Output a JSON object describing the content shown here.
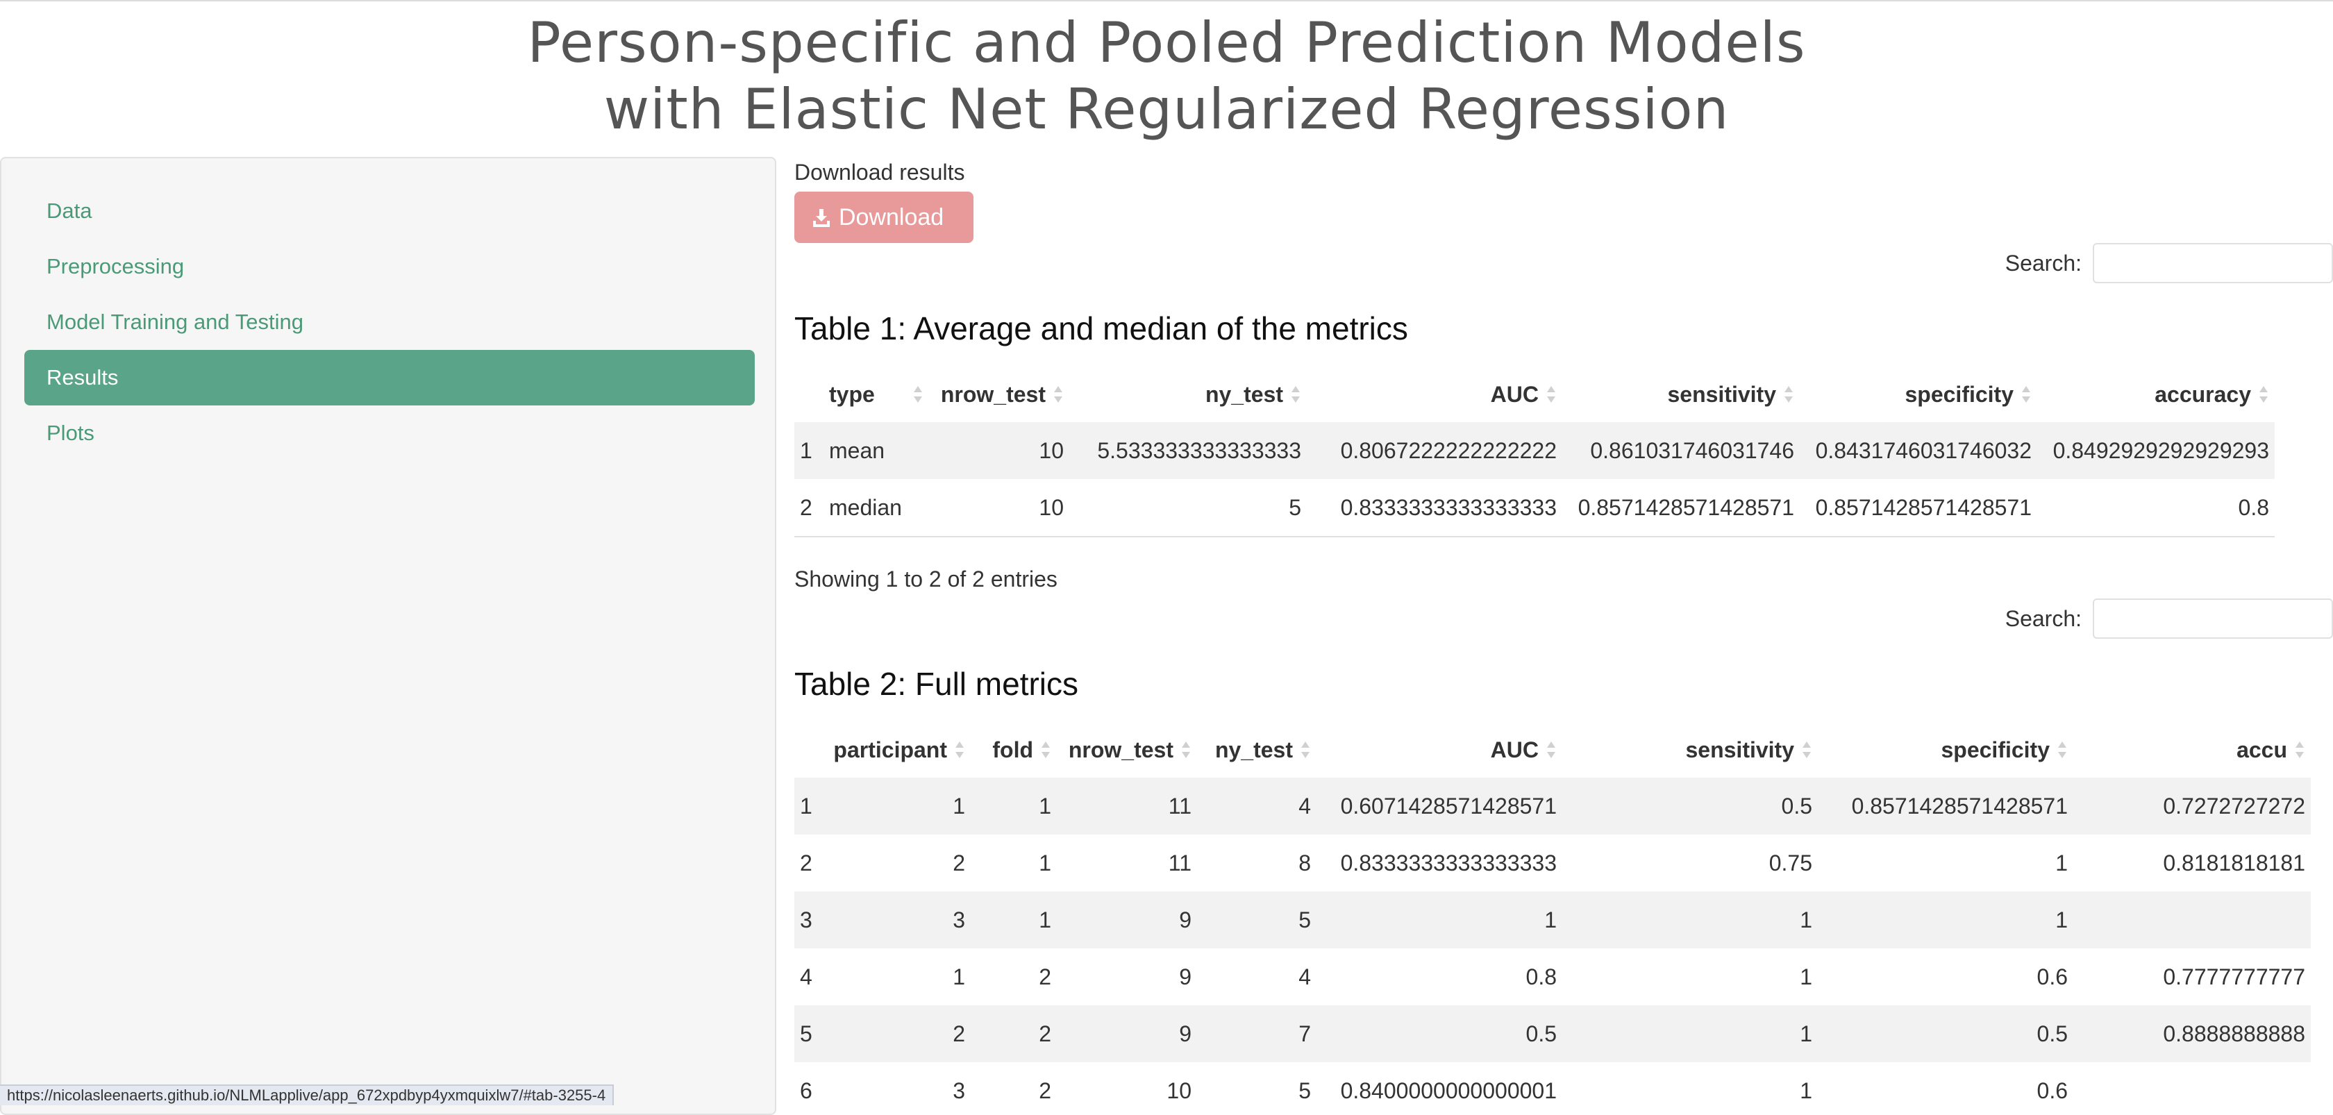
{
  "title": {
    "line1": "Person-specific and Pooled Prediction Models",
    "line2": "with Elastic Net Regularized Regression"
  },
  "sidebar": {
    "items": [
      {
        "label": "Data",
        "active": false
      },
      {
        "label": "Preprocessing",
        "active": false
      },
      {
        "label": "Model Training and Testing",
        "active": false
      },
      {
        "label": "Results",
        "active": true
      },
      {
        "label": "Plots",
        "active": false
      }
    ]
  },
  "download": {
    "label": "Download results",
    "button": "Download",
    "button_color": "#e89a9a"
  },
  "search_label": "Search:",
  "table1": {
    "title": "Table 1: Average and median of the metrics",
    "columns": [
      "",
      "type",
      "nrow_test",
      "ny_test",
      "AUC",
      "sensitivity",
      "specificity",
      "accuracy"
    ],
    "rows": [
      [
        "1",
        "mean",
        "10",
        "5.533333333333333",
        "0.8067222222222222",
        "0.861031746031746",
        "0.8431746031746032",
        "0.8492929292929293"
      ],
      [
        "2",
        "median",
        "10",
        "5",
        "0.8333333333333333",
        "0.8571428571428571",
        "0.8571428571428571",
        "0.8"
      ]
    ],
    "info": "Showing 1 to 2 of 2 entries"
  },
  "table2": {
    "title": "Table 2: Full metrics",
    "columns": [
      "",
      "participant",
      "fold",
      "nrow_test",
      "ny_test",
      "AUC",
      "sensitivity",
      "specificity",
      "accu"
    ],
    "rows": [
      [
        "1",
        "1",
        "1",
        "11",
        "4",
        "0.6071428571428571",
        "0.5",
        "0.8571428571428571",
        "0.7272727272"
      ],
      [
        "2",
        "2",
        "1",
        "11",
        "8",
        "0.8333333333333333",
        "0.75",
        "1",
        "0.8181818181"
      ],
      [
        "3",
        "3",
        "1",
        "9",
        "5",
        "1",
        "1",
        "1",
        ""
      ],
      [
        "4",
        "1",
        "2",
        "9",
        "4",
        "0.8",
        "1",
        "0.6",
        "0.7777777777"
      ],
      [
        "5",
        "2",
        "2",
        "9",
        "7",
        "0.5",
        "1",
        "0.5",
        "0.8888888888"
      ],
      [
        "6",
        "3",
        "2",
        "10",
        "5",
        "0.8400000000000001",
        "1",
        "0.6",
        ""
      ]
    ]
  },
  "status_url": "https://nicolasleenaerts.github.io/NLMLapplive/app_672xpdbyp4yxmquixlw7/#tab-3255-4",
  "colors": {
    "accent": "#5aa58a",
    "link": "#4a9a78"
  }
}
